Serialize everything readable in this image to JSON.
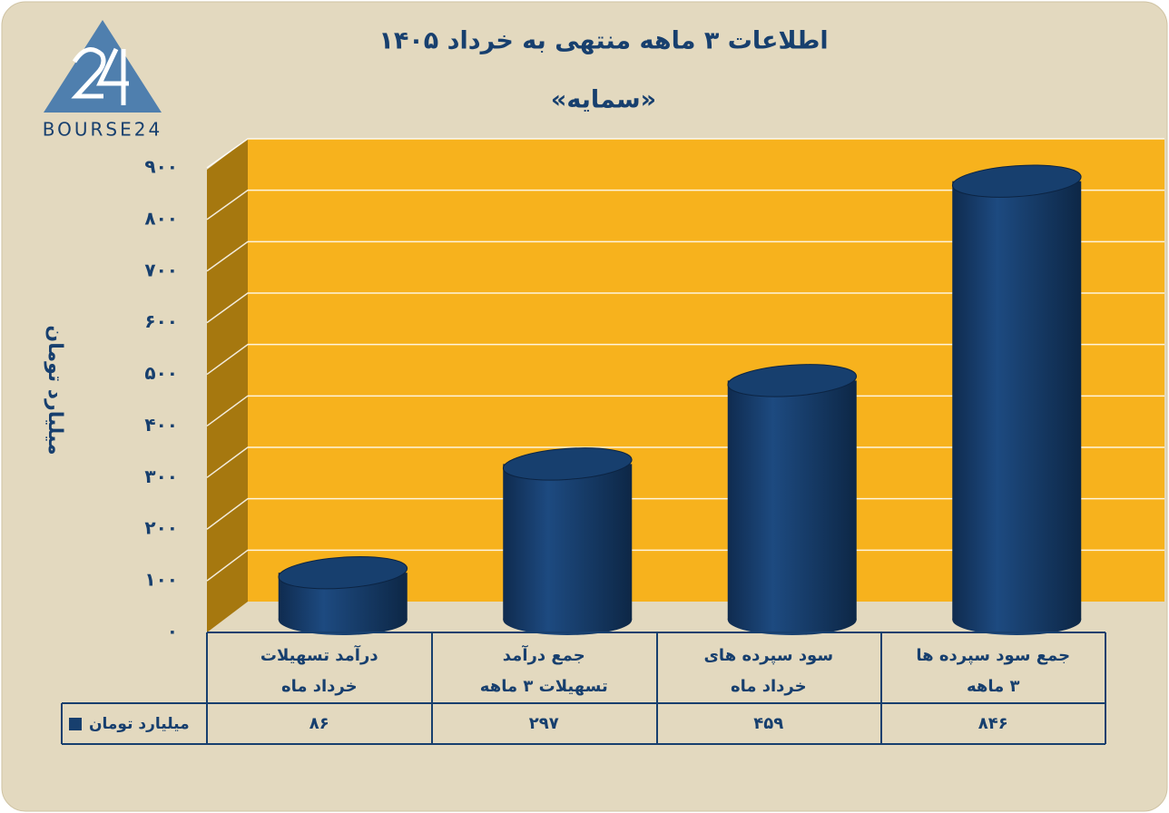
{
  "brand": "BOURSE24",
  "chart_data": {
    "type": "bar",
    "title": "اطلاعات ۳ ماهه منتهی به خرداد ۱۴۰۵",
    "subtitle": "«سمایه»",
    "y_label": "میلیارد تومان",
    "categories": [
      [
        "درآمد تسهیلات",
        "خرداد  ماه"
      ],
      [
        "جمع درآمد",
        "تسهیلات ۳ ماهه"
      ],
      [
        "سود سپرده های",
        "خرداد ماه"
      ],
      [
        "جمع سود سپرده ها",
        "۳ ماهه"
      ]
    ],
    "series": [
      {
        "name": "میلیارد تومان",
        "color": "#173f6e",
        "values": [
          86,
          297,
          459,
          846
        ],
        "value_labels": [
          "۸۶",
          "۲۹۷",
          "۴۵۹",
          "۸۴۶"
        ]
      }
    ],
    "ylim": [
      0,
      900
    ],
    "yticks": [
      {
        "value": 0,
        "label": "۰"
      },
      {
        "value": 100,
        "label": "۱۰۰"
      },
      {
        "value": 200,
        "label": "۲۰۰"
      },
      {
        "value": 300,
        "label": "۳۰۰"
      },
      {
        "value": 400,
        "label": "۴۰۰"
      },
      {
        "value": 500,
        "label": "۵۰۰"
      },
      {
        "value": 600,
        "label": "۶۰۰"
      },
      {
        "value": 700,
        "label": "۷۰۰"
      },
      {
        "value": 800,
        "label": "۸۰۰"
      },
      {
        "value": 900,
        "label": "۹۰۰"
      }
    ],
    "grid": true
  }
}
